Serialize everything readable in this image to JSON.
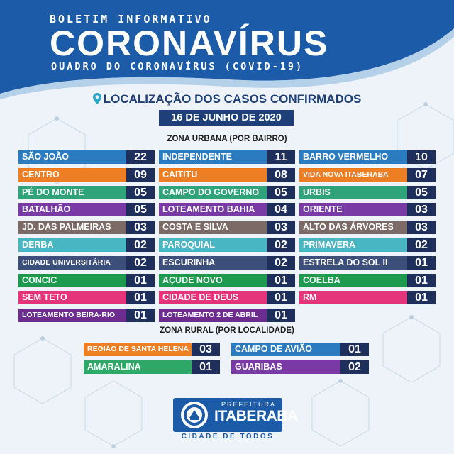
{
  "header": {
    "boletim": "BOLETIM INFORMATIVO",
    "title": "CORONAVÍRUS",
    "subtitle": "QUADRO DO CORONAVÍRUS (COVID-19)"
  },
  "location_title": "LOCALIZAÇÃO DOS CASOS CONFIRMADOS",
  "date": "16 DE JUNHO DE 2020",
  "urban": {
    "title": "ZONA URBANA (POR BAIRRO)",
    "rows": [
      {
        "color": "#2b7bc0",
        "cells": [
          {
            "name": "SÃO JOÃO",
            "count": "22"
          },
          {
            "name": "INDEPENDENTE",
            "count": "11"
          },
          {
            "name": "BARRO VERMELHO",
            "count": "10"
          }
        ]
      },
      {
        "color": "#ee7e24",
        "cells": [
          {
            "name": "CENTRO",
            "count": "09"
          },
          {
            "name": "CAITITU",
            "count": "08"
          },
          {
            "name": "VIDA NOVA ITABERABA",
            "count": "07"
          }
        ]
      },
      {
        "color": "#2fa37a",
        "cells": [
          {
            "name": "PÉ DO MONTE",
            "count": "05"
          },
          {
            "name": "CAMPO DO GOVERNO",
            "count": "05"
          },
          {
            "name": "URBIS",
            "count": "05"
          }
        ]
      },
      {
        "color": "#7a3aa6",
        "cells": [
          {
            "name": "BATALHÃO",
            "count": "05"
          },
          {
            "name": "LOTEAMENTO BAHIA",
            "count": "04"
          },
          {
            "name": "ORIENTE",
            "count": "03"
          }
        ]
      },
      {
        "color": "#7b6a66",
        "cells": [
          {
            "name": "JD. DAS PALMEIRAS",
            "count": "03"
          },
          {
            "name": "COSTA E SILVA",
            "count": "03"
          },
          {
            "name": "ALTO DAS ÁRVORES",
            "count": "03"
          }
        ]
      },
      {
        "color": "#49b6c4",
        "cells": [
          {
            "name": "DERBA",
            "count": "02"
          },
          {
            "name": "PAROQUIAL",
            "count": "02"
          },
          {
            "name": "PRIMAVERA",
            "count": "02"
          }
        ]
      },
      {
        "color": "#3c4f7a",
        "cells": [
          {
            "name": "CIDADE UNIVERSITÁRIA",
            "count": "02"
          },
          {
            "name": "ESCURINHA",
            "count": "02"
          },
          {
            "name": "ESTRELA DO SOL II",
            "count": "01"
          }
        ]
      },
      {
        "color": "#1e9a4e",
        "cells": [
          {
            "name": "CONCIC",
            "count": "01"
          },
          {
            "name": "AÇUDE NOVO",
            "count": "01"
          },
          {
            "name": "COELBA",
            "count": "01"
          }
        ]
      },
      {
        "color": "#e6347b",
        "cells": [
          {
            "name": "SEM TETO",
            "count": "01"
          },
          {
            "name": "CIDADE DE DEUS",
            "count": "01"
          },
          {
            "name": "RM",
            "count": "01"
          }
        ]
      },
      {
        "color": "#6b2d8f",
        "cells": [
          {
            "name": "LOTEAMENTO BEIRA-RIO",
            "count": "01"
          },
          {
            "name": "LOTEAMENTO 2 DE ABRIL",
            "count": "01"
          }
        ]
      }
    ]
  },
  "rural": {
    "title": "ZONA RURAL (POR LOCALIDADE)",
    "left": [
      {
        "name": "REGIÃO DE SANTA HELENA",
        "count": "03",
        "color": "#ee7e24"
      },
      {
        "name": "AMARALINA",
        "count": "01",
        "color": "#2ea866"
      }
    ],
    "right": [
      {
        "name": "CAMPO DE AVIÃO",
        "count": "01",
        "color": "#2b7bc0"
      },
      {
        "name": "GUARIBAS",
        "count": "02",
        "color": "#7a3aa6"
      }
    ]
  },
  "logo": {
    "prefeitura": "PREFEITURA",
    "name": "ITABERABA",
    "tagline": "CIDADE DE TODOS"
  }
}
